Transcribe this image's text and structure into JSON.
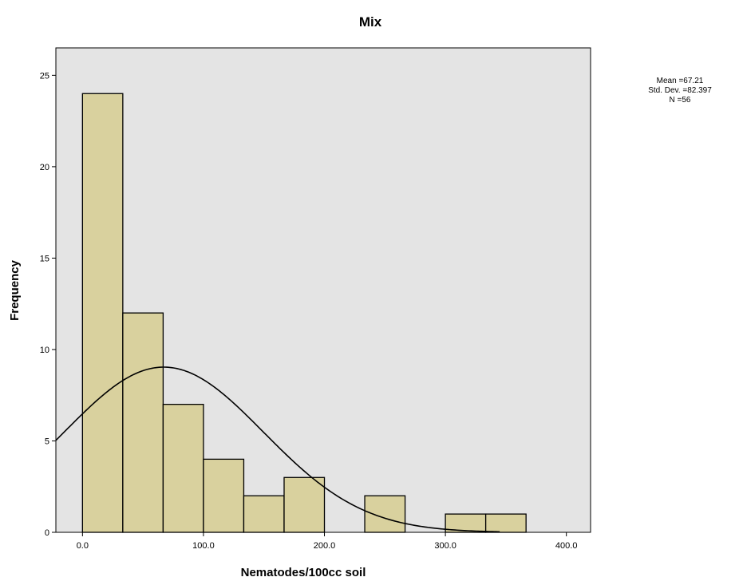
{
  "chart_data": {
    "type": "bar",
    "title": "Mix",
    "xlabel": "Nematodes/100cc soil",
    "ylabel": "Frequency",
    "bin_width": 33.33,
    "bins": [
      {
        "start": 0.0,
        "end": 33.33,
        "count": 24
      },
      {
        "start": 33.33,
        "end": 66.67,
        "count": 12
      },
      {
        "start": 66.67,
        "end": 100.0,
        "count": 7
      },
      {
        "start": 100.0,
        "end": 133.33,
        "count": 4
      },
      {
        "start": 133.33,
        "end": 166.67,
        "count": 2
      },
      {
        "start": 166.67,
        "end": 200.0,
        "count": 3
      },
      {
        "start": 200.0,
        "end": 233.33,
        "count": 0
      },
      {
        "start": 233.33,
        "end": 266.67,
        "count": 2
      },
      {
        "start": 266.67,
        "end": 300.0,
        "count": 0
      },
      {
        "start": 300.0,
        "end": 333.33,
        "count": 1
      },
      {
        "start": 333.33,
        "end": 366.67,
        "count": 1
      }
    ],
    "xlim": [
      -22,
      420
    ],
    "ylim": [
      0,
      26.5
    ],
    "xticks": [
      0,
      100,
      200,
      300,
      400
    ],
    "xtick_labels": [
      "0.0",
      "100.0",
      "200.0",
      "300.0",
      "400.0"
    ],
    "yticks": [
      0,
      5,
      10,
      15,
      20,
      25
    ],
    "ytick_labels": [
      "0",
      "5",
      "10",
      "15",
      "20",
      "25"
    ],
    "normal_curve": {
      "mean": 67.21,
      "std": 82.397,
      "n": 56
    },
    "stats_text": [
      "Mean =67.21",
      "Std. Dev. =82.397",
      "N =56"
    ],
    "grid": false,
    "colors": {
      "plot_background": "#e4e4e4",
      "bar_fill": "#d9d19e",
      "bar_stroke": "#000000",
      "curve": "#000000"
    }
  }
}
